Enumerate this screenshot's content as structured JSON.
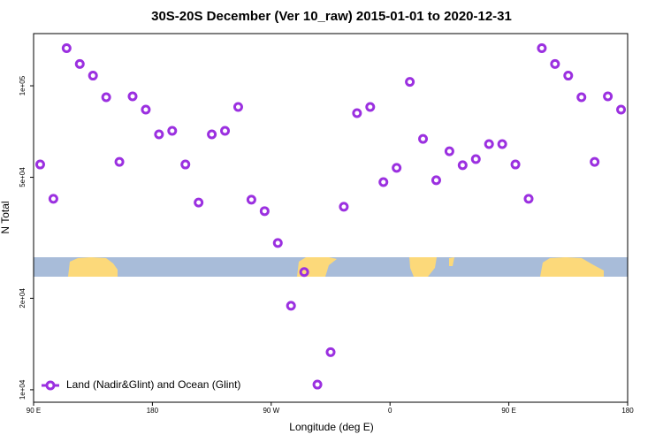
{
  "chart_data": {
    "type": "scatter",
    "title": "30S-20S December (Ver 10_raw)   2015-01-01 to 2020-12-31",
    "x_label": "Longitude (deg E)",
    "y_label": "N Total",
    "xlim": [
      90,
      540
    ],
    "xticks": [
      {
        "value": 90,
        "label": "90 E"
      },
      {
        "value": 180,
        "label": "180"
      },
      {
        "value": 270,
        "label": "90 W"
      },
      {
        "value": 360,
        "label": "0"
      },
      {
        "value": 450,
        "label": "90 E"
      },
      {
        "value": 540,
        "label": "180"
      }
    ],
    "ylim": [
      9100,
      148500
    ],
    "ylog": true,
    "yticks": [
      {
        "value": 10000,
        "label": "1e+04"
      },
      {
        "value": 20000,
        "label": "2e+04"
      },
      {
        "value": 50000,
        "label": "5e+04"
      },
      {
        "value": 100000,
        "label": "1e+05"
      }
    ],
    "legend": "bottom-left",
    "series": [
      {
        "name": "Land (Nadir&Glint) and Ocean (Glint)",
        "color": "#9b30e0",
        "x": [
          95,
          105,
          115,
          125,
          135,
          145,
          155,
          165,
          175,
          185,
          195,
          205,
          215,
          225,
          235,
          245,
          255,
          265,
          275,
          285,
          295,
          305,
          315,
          325,
          335,
          345,
          355,
          365,
          375,
          385,
          395,
          405,
          415,
          425,
          435,
          445,
          455,
          465,
          475,
          485,
          495,
          505,
          515,
          525,
          535
        ],
        "values": [
          55100,
          42500,
          133000,
          118000,
          108000,
          91700,
          56200,
          92300,
          83500,
          69200,
          71100,
          55100,
          41300,
          69200,
          71100,
          85200,
          42200,
          38700,
          30400,
          18900,
          24400,
          10400,
          13300,
          40000,
          81300,
          85200,
          48200,
          53700,
          103000,
          66900,
          48900,
          60900,
          54800,
          57400,
          64300,
          64300,
          55100,
          42500,
          133000,
          118000,
          108000,
          91700,
          56200,
          92300,
          83500
        ]
      }
    ]
  }
}
